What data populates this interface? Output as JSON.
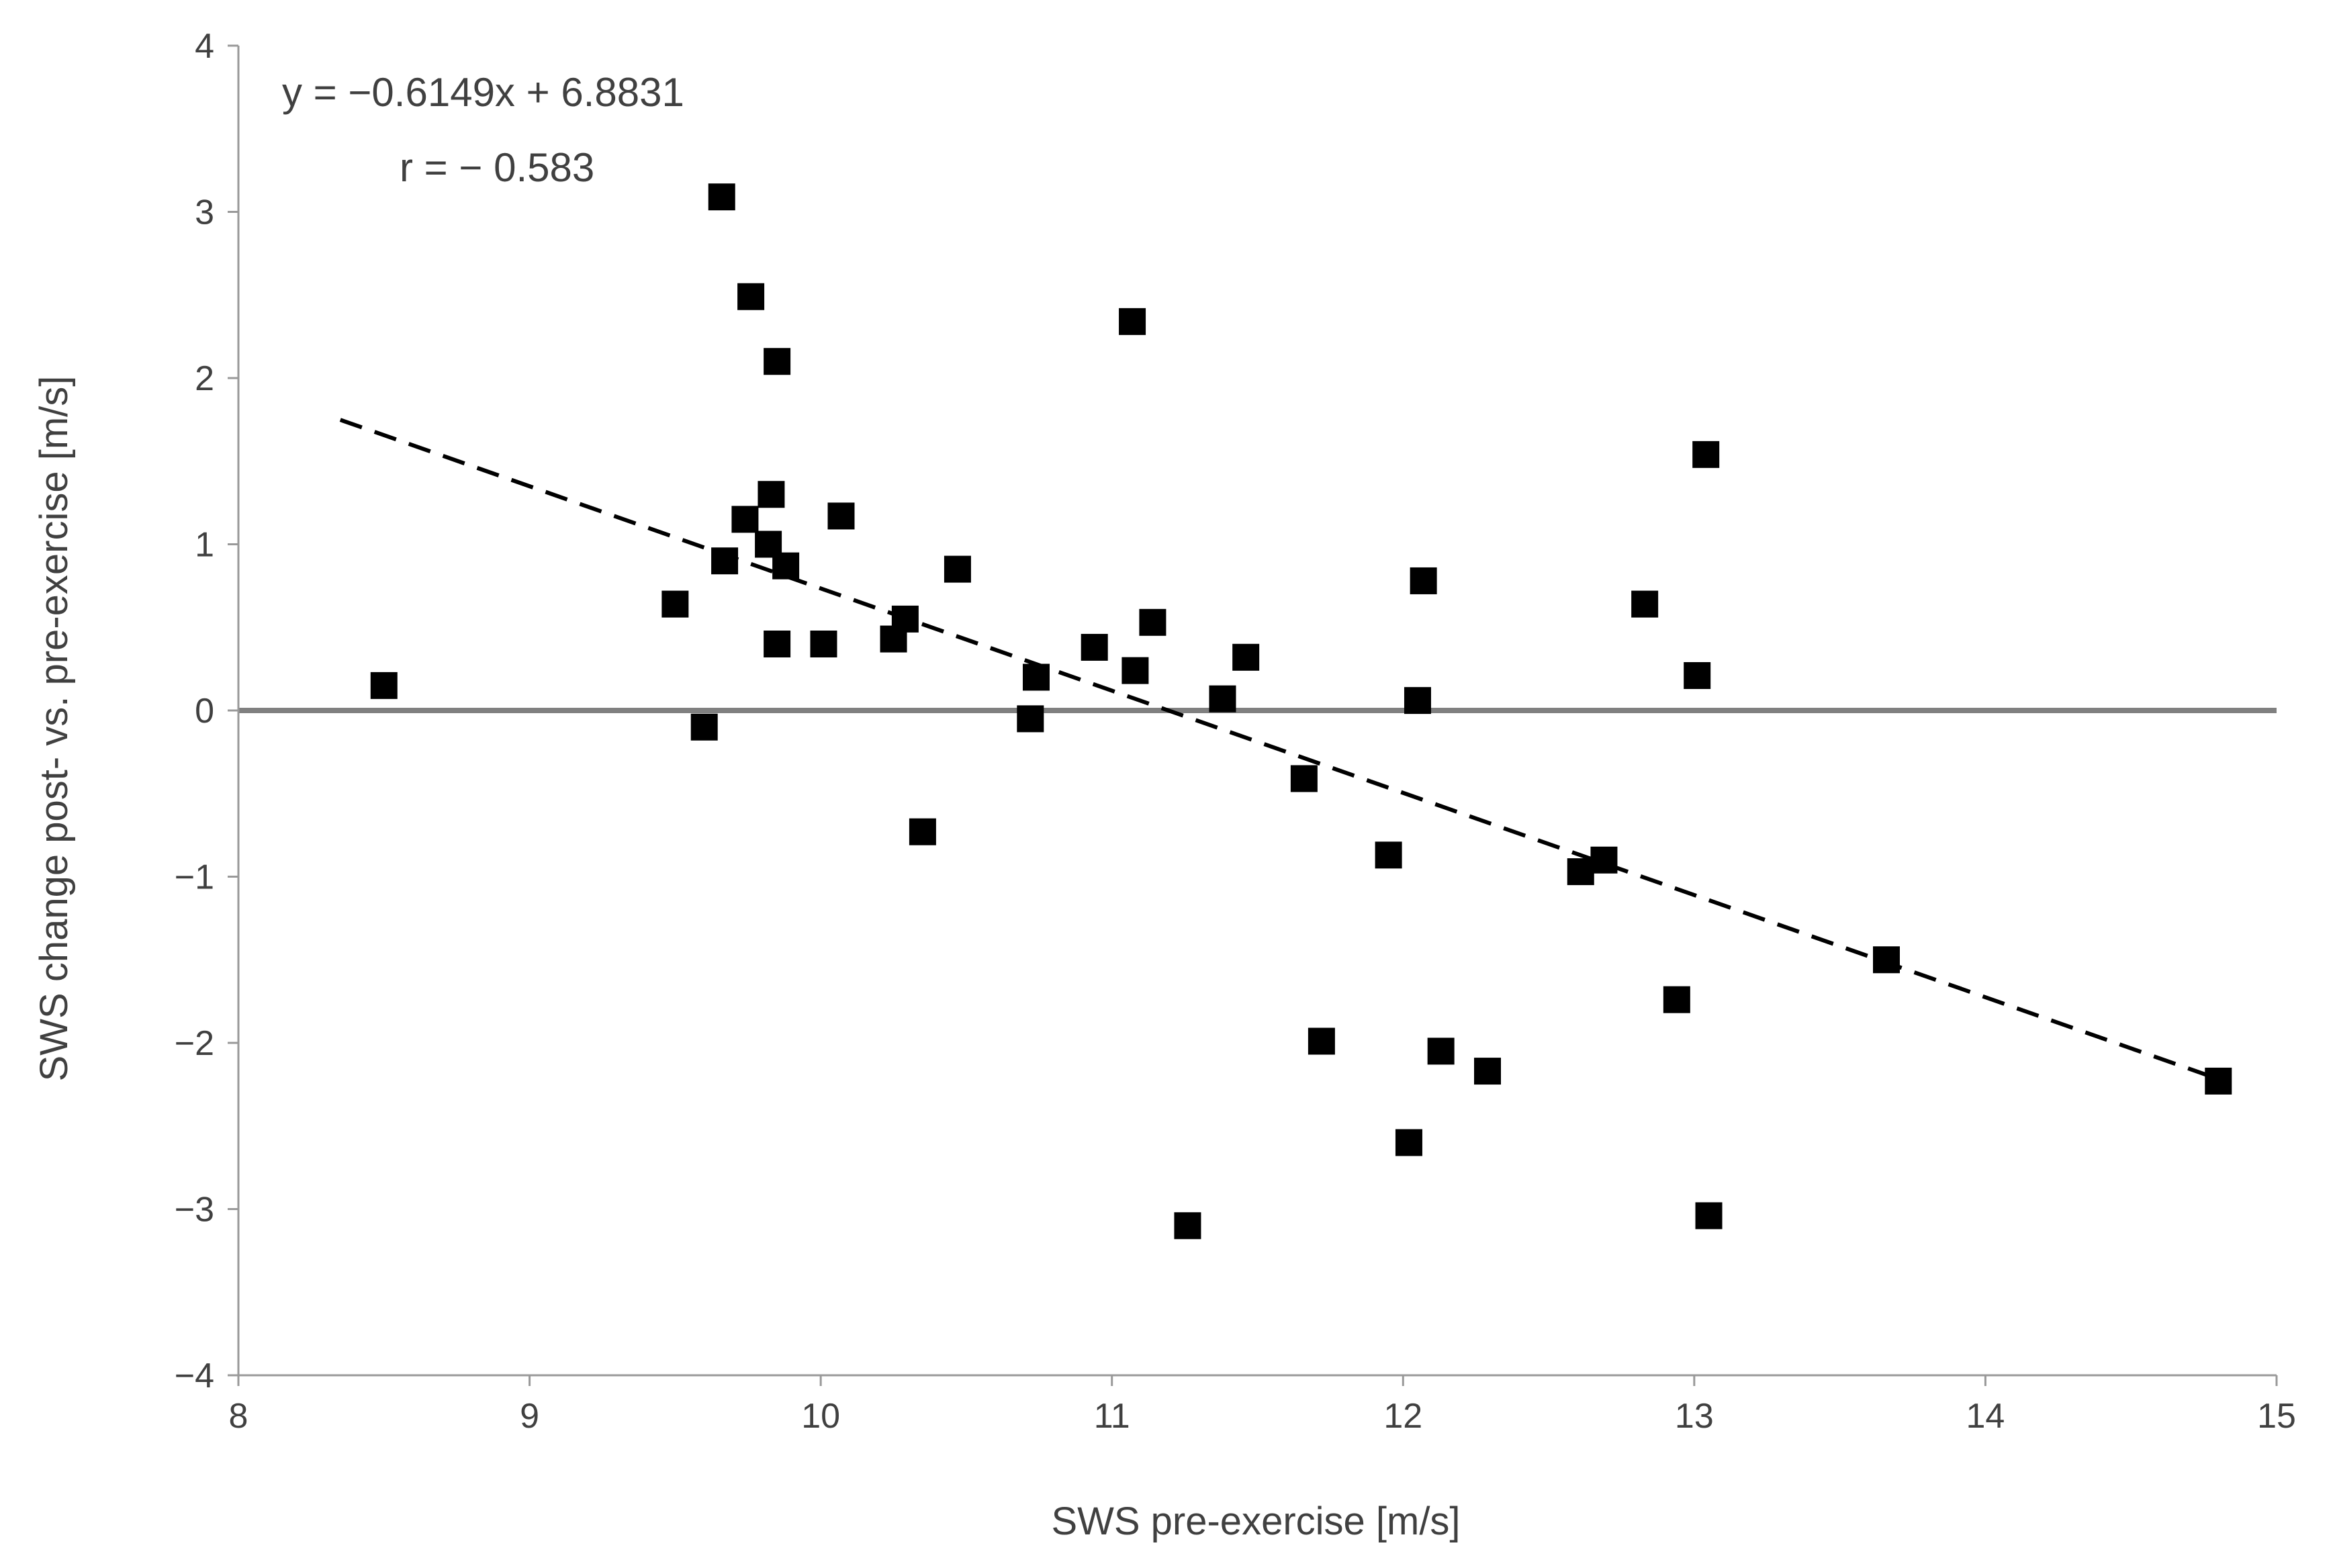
{
  "chart_data": {
    "type": "scatter",
    "xlabel": "SWS pre-exercise [m/s]",
    "ylabel": "SWS change post- vs. pre-exercise [m/s]",
    "xlim": [
      8,
      15
    ],
    "ylim": [
      -4,
      4
    ],
    "x_ticks": [
      "8",
      "9",
      "10",
      "11",
      "12",
      "13",
      "14",
      "15"
    ],
    "y_ticks": [
      "4",
      "3",
      "2",
      "1",
      "0",
      "−1",
      "−2",
      "−3",
      "−4"
    ],
    "annotations": {
      "equation": "y = −0.6149x + 6.8831",
      "r": "r = − 0.583"
    },
    "trendline": {
      "slope": -0.6149,
      "intercept": 6.8831,
      "x_start": 8.35,
      "x_end": 14.8,
      "style": "dashed"
    },
    "reference_line": {
      "y": 0
    },
    "marker": "square",
    "colors": {
      "points": "#000000",
      "trendline": "#000000",
      "zero_line": "#808080",
      "axis": "#999999",
      "text": "#404040"
    },
    "points": [
      {
        "x": 8.5,
        "y": 0.15
      },
      {
        "x": 9.5,
        "y": 0.64
      },
      {
        "x": 9.6,
        "y": -0.1
      },
      {
        "x": 9.66,
        "y": 3.09
      },
      {
        "x": 9.67,
        "y": 0.9
      },
      {
        "x": 9.74,
        "y": 1.15
      },
      {
        "x": 9.76,
        "y": 2.49
      },
      {
        "x": 9.82,
        "y": 1.0
      },
      {
        "x": 9.83,
        "y": 1.3
      },
      {
        "x": 9.85,
        "y": 2.1
      },
      {
        "x": 9.85,
        "y": 0.4
      },
      {
        "x": 9.88,
        "y": 0.87
      },
      {
        "x": 10.01,
        "y": 0.4
      },
      {
        "x": 10.07,
        "y": 1.17
      },
      {
        "x": 10.25,
        "y": 0.43
      },
      {
        "x": 10.29,
        "y": 0.55
      },
      {
        "x": 10.35,
        "y": -0.73
      },
      {
        "x": 10.47,
        "y": 0.85
      },
      {
        "x": 10.72,
        "y": -0.05
      },
      {
        "x": 10.74,
        "y": 0.2
      },
      {
        "x": 10.94,
        "y": 0.38
      },
      {
        "x": 11.07,
        "y": 2.34
      },
      {
        "x": 11.08,
        "y": 0.24
      },
      {
        "x": 11.14,
        "y": 0.53
      },
      {
        "x": 11.26,
        "y": -3.1
      },
      {
        "x": 11.38,
        "y": 0.07
      },
      {
        "x": 11.46,
        "y": 0.32
      },
      {
        "x": 11.66,
        "y": -0.41
      },
      {
        "x": 11.72,
        "y": -1.99
      },
      {
        "x": 11.95,
        "y": -0.87
      },
      {
        "x": 12.02,
        "y": -2.6
      },
      {
        "x": 12.05,
        "y": 0.06
      },
      {
        "x": 12.07,
        "y": 0.78
      },
      {
        "x": 12.13,
        "y": -2.05
      },
      {
        "x": 12.29,
        "y": -2.17
      },
      {
        "x": 12.61,
        "y": -0.97
      },
      {
        "x": 12.69,
        "y": -0.9
      },
      {
        "x": 12.83,
        "y": 0.64
      },
      {
        "x": 12.94,
        "y": -1.74
      },
      {
        "x": 13.01,
        "y": 0.21
      },
      {
        "x": 13.04,
        "y": 1.54
      },
      {
        "x": 13.05,
        "y": -3.04
      },
      {
        "x": 13.66,
        "y": -1.5
      },
      {
        "x": 14.8,
        "y": -2.23
      }
    ]
  }
}
